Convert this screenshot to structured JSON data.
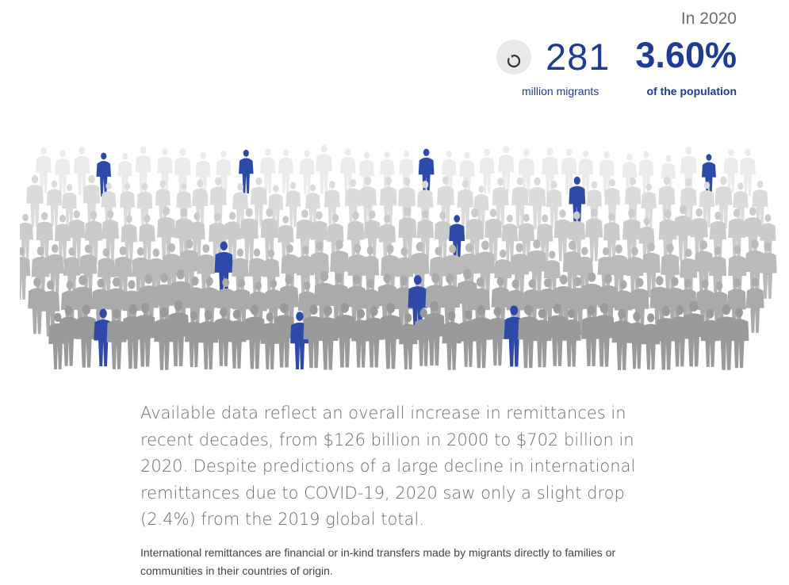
{
  "stats": {
    "year_label": "In 2020",
    "migrants_count": "281",
    "migrants_label": "million migrants",
    "population_pct": "3.60%",
    "population_label": "of the population",
    "replay_icon": "replay-icon"
  },
  "crowd": {
    "highlight_fraction": 0.036,
    "colors": {
      "highlight": "#2e4aa8",
      "back_row": "#ebebeb",
      "front_row": "#9a9a9a",
      "accent": "#1e3c96"
    }
  },
  "body": {
    "lead": "Available data reflect an overall increase in remittances in recent decades, from $126 billion in 2000 to $702 billion in 2020. Despite predictions of a large decline in international remittances due to COVID-19, 2020 saw only a slight drop (2.4%) from the 2019 global total.",
    "note": "International remittances are financial or in-kind transfers made by migrants directly to families or communities in their countries of origin."
  }
}
